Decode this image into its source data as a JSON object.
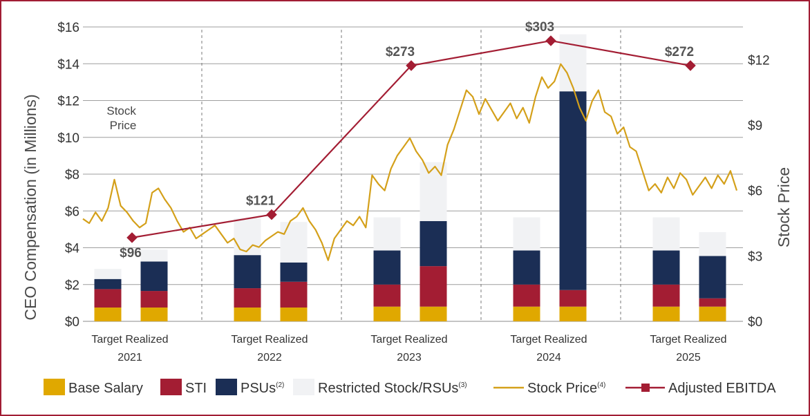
{
  "chart_data": {
    "type": "bar",
    "title": "",
    "stacking": "stacked",
    "y_left": {
      "label": "CEO Compensation (in Millions)",
      "ylim": [
        0,
        16
      ],
      "ticks": [
        "$0",
        "$2",
        "$4",
        "$6",
        "$8",
        "$10",
        "$12",
        "$14",
        "$16"
      ],
      "tick_values": [
        0,
        2,
        4,
        6,
        8,
        10,
        12,
        14,
        16
      ]
    },
    "y_right": {
      "label": "Stock Price",
      "ylim": [
        0,
        13.5
      ],
      "ticks": [
        "$0",
        "$3",
        "$6",
        "$9",
        "$12"
      ],
      "tick_values": [
        0,
        3,
        6,
        9,
        12
      ]
    },
    "years": [
      "2021",
      "2022",
      "2023",
      "2024",
      "2025"
    ],
    "bar_kinds": [
      "Target",
      "Realized"
    ],
    "bars": [
      {
        "year": "2021",
        "kind": "Target",
        "base": 0.75,
        "sti": 1.0,
        "psu": 0.55,
        "rsu": 0.55
      },
      {
        "year": "2021",
        "kind": "Realized",
        "base": 0.75,
        "sti": 0.9,
        "psu": 1.6,
        "rsu": 0.65
      },
      {
        "year": "2022",
        "kind": "Target",
        "base": 0.75,
        "sti": 1.05,
        "psu": 1.8,
        "rsu": 2.0
      },
      {
        "year": "2022",
        "kind": "Realized",
        "base": 0.75,
        "sti": 1.4,
        "psu": 1.05,
        "rsu": 2.2
      },
      {
        "year": "2023",
        "kind": "Target",
        "base": 0.8,
        "sti": 1.2,
        "psu": 1.85,
        "rsu": 1.8
      },
      {
        "year": "2023",
        "kind": "Realized",
        "base": 0.8,
        "sti": 2.2,
        "psu": 2.45,
        "rsu": 3.2
      },
      {
        "year": "2024",
        "kind": "Target",
        "base": 0.8,
        "sti": 1.2,
        "psu": 1.85,
        "rsu": 1.8
      },
      {
        "year": "2024",
        "kind": "Realized",
        "base": 0.8,
        "sti": 0.9,
        "psu": 10.8,
        "rsu": 3.1
      },
      {
        "year": "2025",
        "kind": "Target",
        "base": 0.8,
        "sti": 1.2,
        "psu": 1.85,
        "rsu": 1.8
      },
      {
        "year": "2025",
        "kind": "Realized",
        "base": 0.8,
        "sti": 0.45,
        "psu": 2.3,
        "rsu": 1.3
      }
    ],
    "adjusted_ebitda": {
      "name": "Adjusted EBITDA",
      "years": [
        "2021",
        "2022",
        "2023",
        "2024",
        "2025"
      ],
      "values": [
        96,
        121,
        273,
        303,
        272
      ],
      "labels": [
        "$96",
        "$121",
        "$273",
        "$303",
        "$272"
      ],
      "plotted_on_left_axis_as": [
        4.55,
        5.8,
        13.9,
        15.25,
        13.9
      ]
    },
    "stock_price": {
      "name": "Stock Price",
      "axis": "right",
      "x_range": [
        "2021",
        "2025"
      ],
      "values": [
        4.7,
        4.5,
        5.0,
        4.6,
        5.2,
        6.5,
        5.3,
        5.0,
        4.6,
        4.3,
        4.5,
        5.9,
        6.1,
        5.6,
        5.2,
        4.6,
        4.1,
        4.3,
        3.8,
        4.0,
        4.2,
        4.4,
        4.0,
        3.6,
        3.8,
        3.3,
        3.2,
        3.5,
        3.4,
        3.7,
        3.9,
        4.1,
        4.0,
        4.6,
        4.8,
        5.2,
        4.6,
        4.2,
        3.6,
        2.8,
        3.8,
        4.2,
        4.6,
        4.4,
        4.8,
        4.3,
        6.7,
        6.3,
        6.0,
        7.0,
        7.6,
        8.0,
        8.4,
        7.8,
        7.4,
        6.8,
        7.1,
        6.7,
        8.1,
        8.8,
        9.7,
        10.6,
        10.3,
        9.5,
        10.2,
        9.7,
        9.2,
        9.6,
        10.0,
        9.3,
        9.8,
        9.1,
        10.3,
        11.2,
        10.7,
        11.0,
        11.8,
        11.4,
        10.7,
        9.8,
        9.2,
        10.1,
        10.6,
        9.6,
        9.4,
        8.6,
        8.9,
        8.0,
        7.8,
        6.9,
        6.0,
        6.3,
        5.9,
        6.6,
        6.1,
        6.8,
        6.5,
        5.8,
        6.2,
        6.6,
        6.1,
        6.7,
        6.3,
        6.9,
        6.0
      ],
      "note": "Stock Price"
    },
    "legend": {
      "items": [
        "Base Salary",
        "STI",
        "PSUs",
        "Restricted Stock/RSUs",
        "Stock Price",
        "Adjusted EBITDA"
      ],
      "superscripts": [
        "",
        "",
        "(2)",
        "(3)",
        "(4)",
        ""
      ],
      "placement": "bottom"
    },
    "colors": {
      "base": "#e0a800",
      "sti": "#a31d33",
      "psu": "#1b2e55",
      "rsu": "#f1f2f4",
      "stock": "#d4a01a",
      "ebitda": "#a31d33",
      "grid": "#9e9e9e",
      "separator": "#777777"
    }
  }
}
